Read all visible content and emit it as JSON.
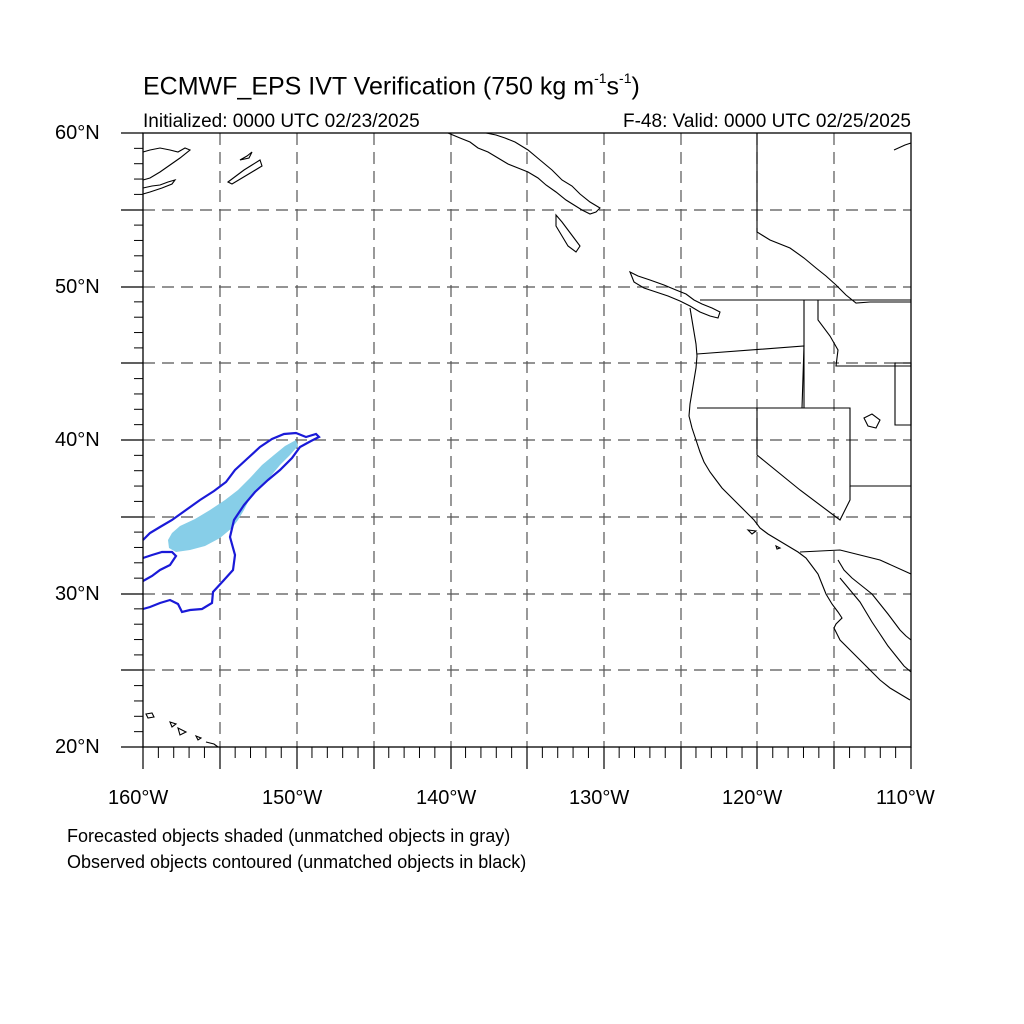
{
  "header": {
    "title_prefix": "ECMWF_EPS IVT Verification (750 kg m",
    "title_exp1": "-1",
    "title_mid": "s",
    "title_exp2": "-1",
    "title_suffix": ")",
    "initialized": "Initialized: 0000 UTC 02/23/2025",
    "valid": "F-48: Valid: 0000 UTC 02/25/2025"
  },
  "axes": {
    "lat_labels": [
      "60°N",
      "50°N",
      "40°N",
      "30°N",
      "20°N"
    ],
    "lon_labels": [
      "160°W",
      "150°W",
      "140°W",
      "130°W",
      "120°W",
      "110°W"
    ],
    "lat_range": [
      20,
      60
    ],
    "lon_range": [
      -160,
      -110
    ],
    "grid": "dashed every 5 degrees"
  },
  "colors": {
    "forecast_fill": "#87cee8",
    "observed_contour": "#1a1ad8",
    "grid": "#555555",
    "coast": "#000000"
  },
  "legend": {
    "line1": "Forecasted objects shaded (unmatched objects in gray)",
    "line2": "Observed objects contoured (unmatched objects in black)"
  }
}
